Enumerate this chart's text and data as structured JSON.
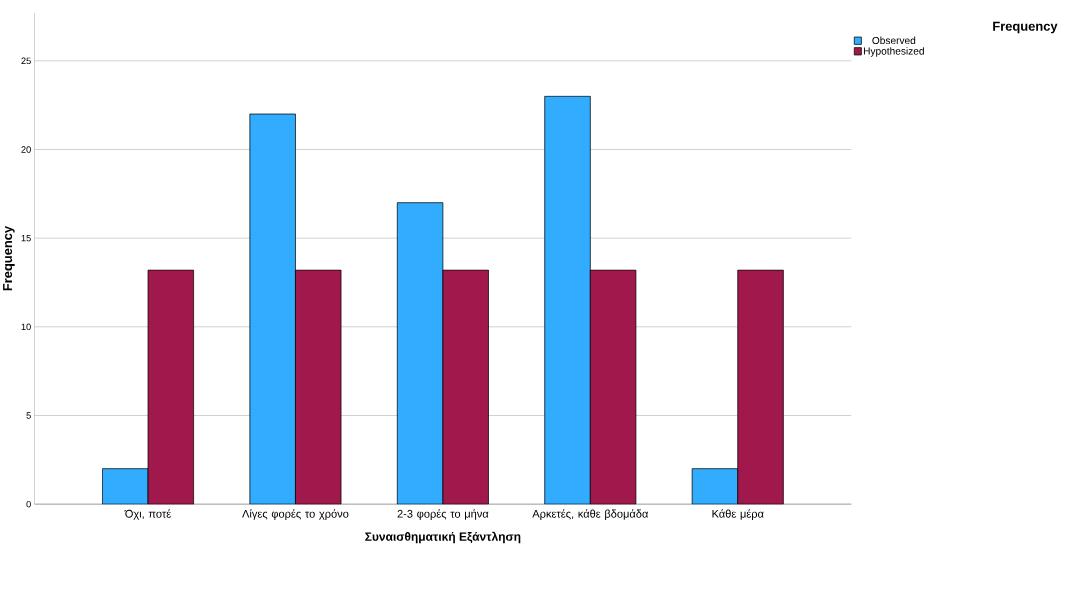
{
  "chart_data": {
    "type": "bar",
    "xlabel": "Συναισθηματική Εξάντληση",
    "ylabel": "Frequency",
    "legend_title": "Frequency",
    "categories": [
      "Όχι, ποτέ",
      "Λίγες φορές το χρόνο",
      "2-3 φορές το μήνα",
      "Αρκετές, κάθε βδομάδα",
      "Κάθε μέρα"
    ],
    "series": [
      {
        "name": "Observed",
        "color": "#31acff",
        "values": [
          2,
          22,
          17,
          23,
          2
        ]
      },
      {
        "name": "Hypothesized",
        "color": "#a0184c",
        "values": [
          13.2,
          13.2,
          13.2,
          13.2,
          13.2
        ]
      }
    ],
    "ylim": [
      0,
      27.7
    ],
    "yticks": [
      0,
      5,
      10,
      15,
      20,
      25
    ],
    "grid": "y",
    "legend": "top right"
  }
}
